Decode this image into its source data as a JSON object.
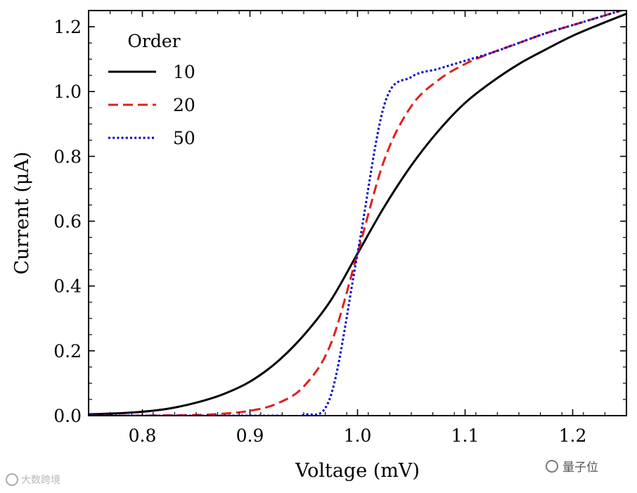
{
  "chart_data": {
    "type": "line",
    "xlabel": "Voltage (mV)",
    "ylabel": "Current (μA)",
    "xlim": [
      0.75,
      1.25
    ],
    "ylim": [
      0.0,
      1.25
    ],
    "xticks": [
      "0.8",
      "0.9",
      "1.0",
      "1.1",
      "1.2"
    ],
    "yticks": [
      "0.0",
      "0.2",
      "0.4",
      "0.6",
      "0.8",
      "1.0",
      "1.2"
    ],
    "legend": {
      "title": "Order",
      "position": "top-left"
    },
    "x": [
      0.75,
      0.775,
      0.8,
      0.825,
      0.85,
      0.875,
      0.9,
      0.925,
      0.95,
      0.975,
      1.0,
      1.025,
      1.05,
      1.075,
      1.1,
      1.125,
      1.15,
      1.175,
      1.2,
      1.225,
      1.25
    ],
    "series": [
      {
        "name": "10",
        "color": "#000000",
        "style": "solid",
        "values": [
          0.004,
          0.007,
          0.012,
          0.022,
          0.04,
          0.066,
          0.105,
          0.165,
          0.248,
          0.355,
          0.5,
          0.645,
          0.772,
          0.878,
          0.965,
          1.03,
          1.085,
          1.13,
          1.172,
          1.207,
          1.24
        ]
      },
      {
        "name": "20",
        "color": "#e0201b",
        "style": "dashed",
        "values": [
          0.0,
          0.0,
          0.0,
          0.001,
          0.002,
          0.006,
          0.015,
          0.037,
          0.09,
          0.22,
          0.5,
          0.79,
          0.955,
          1.035,
          1.085,
          1.12,
          1.15,
          1.18,
          1.205,
          1.23,
          1.255
        ]
      },
      {
        "name": "50",
        "color": "#0000c8",
        "style": "dotted",
        "values": [
          0.0,
          0.0,
          0.0,
          0.0,
          0.0,
          0.0,
          0.0,
          0.0,
          0.002,
          0.06,
          0.5,
          0.96,
          1.045,
          1.07,
          1.095,
          1.12,
          1.15,
          1.18,
          1.205,
          1.23,
          1.255
        ]
      }
    ]
  },
  "watermarks": {
    "left": "大数跨境",
    "right": "量子位"
  }
}
